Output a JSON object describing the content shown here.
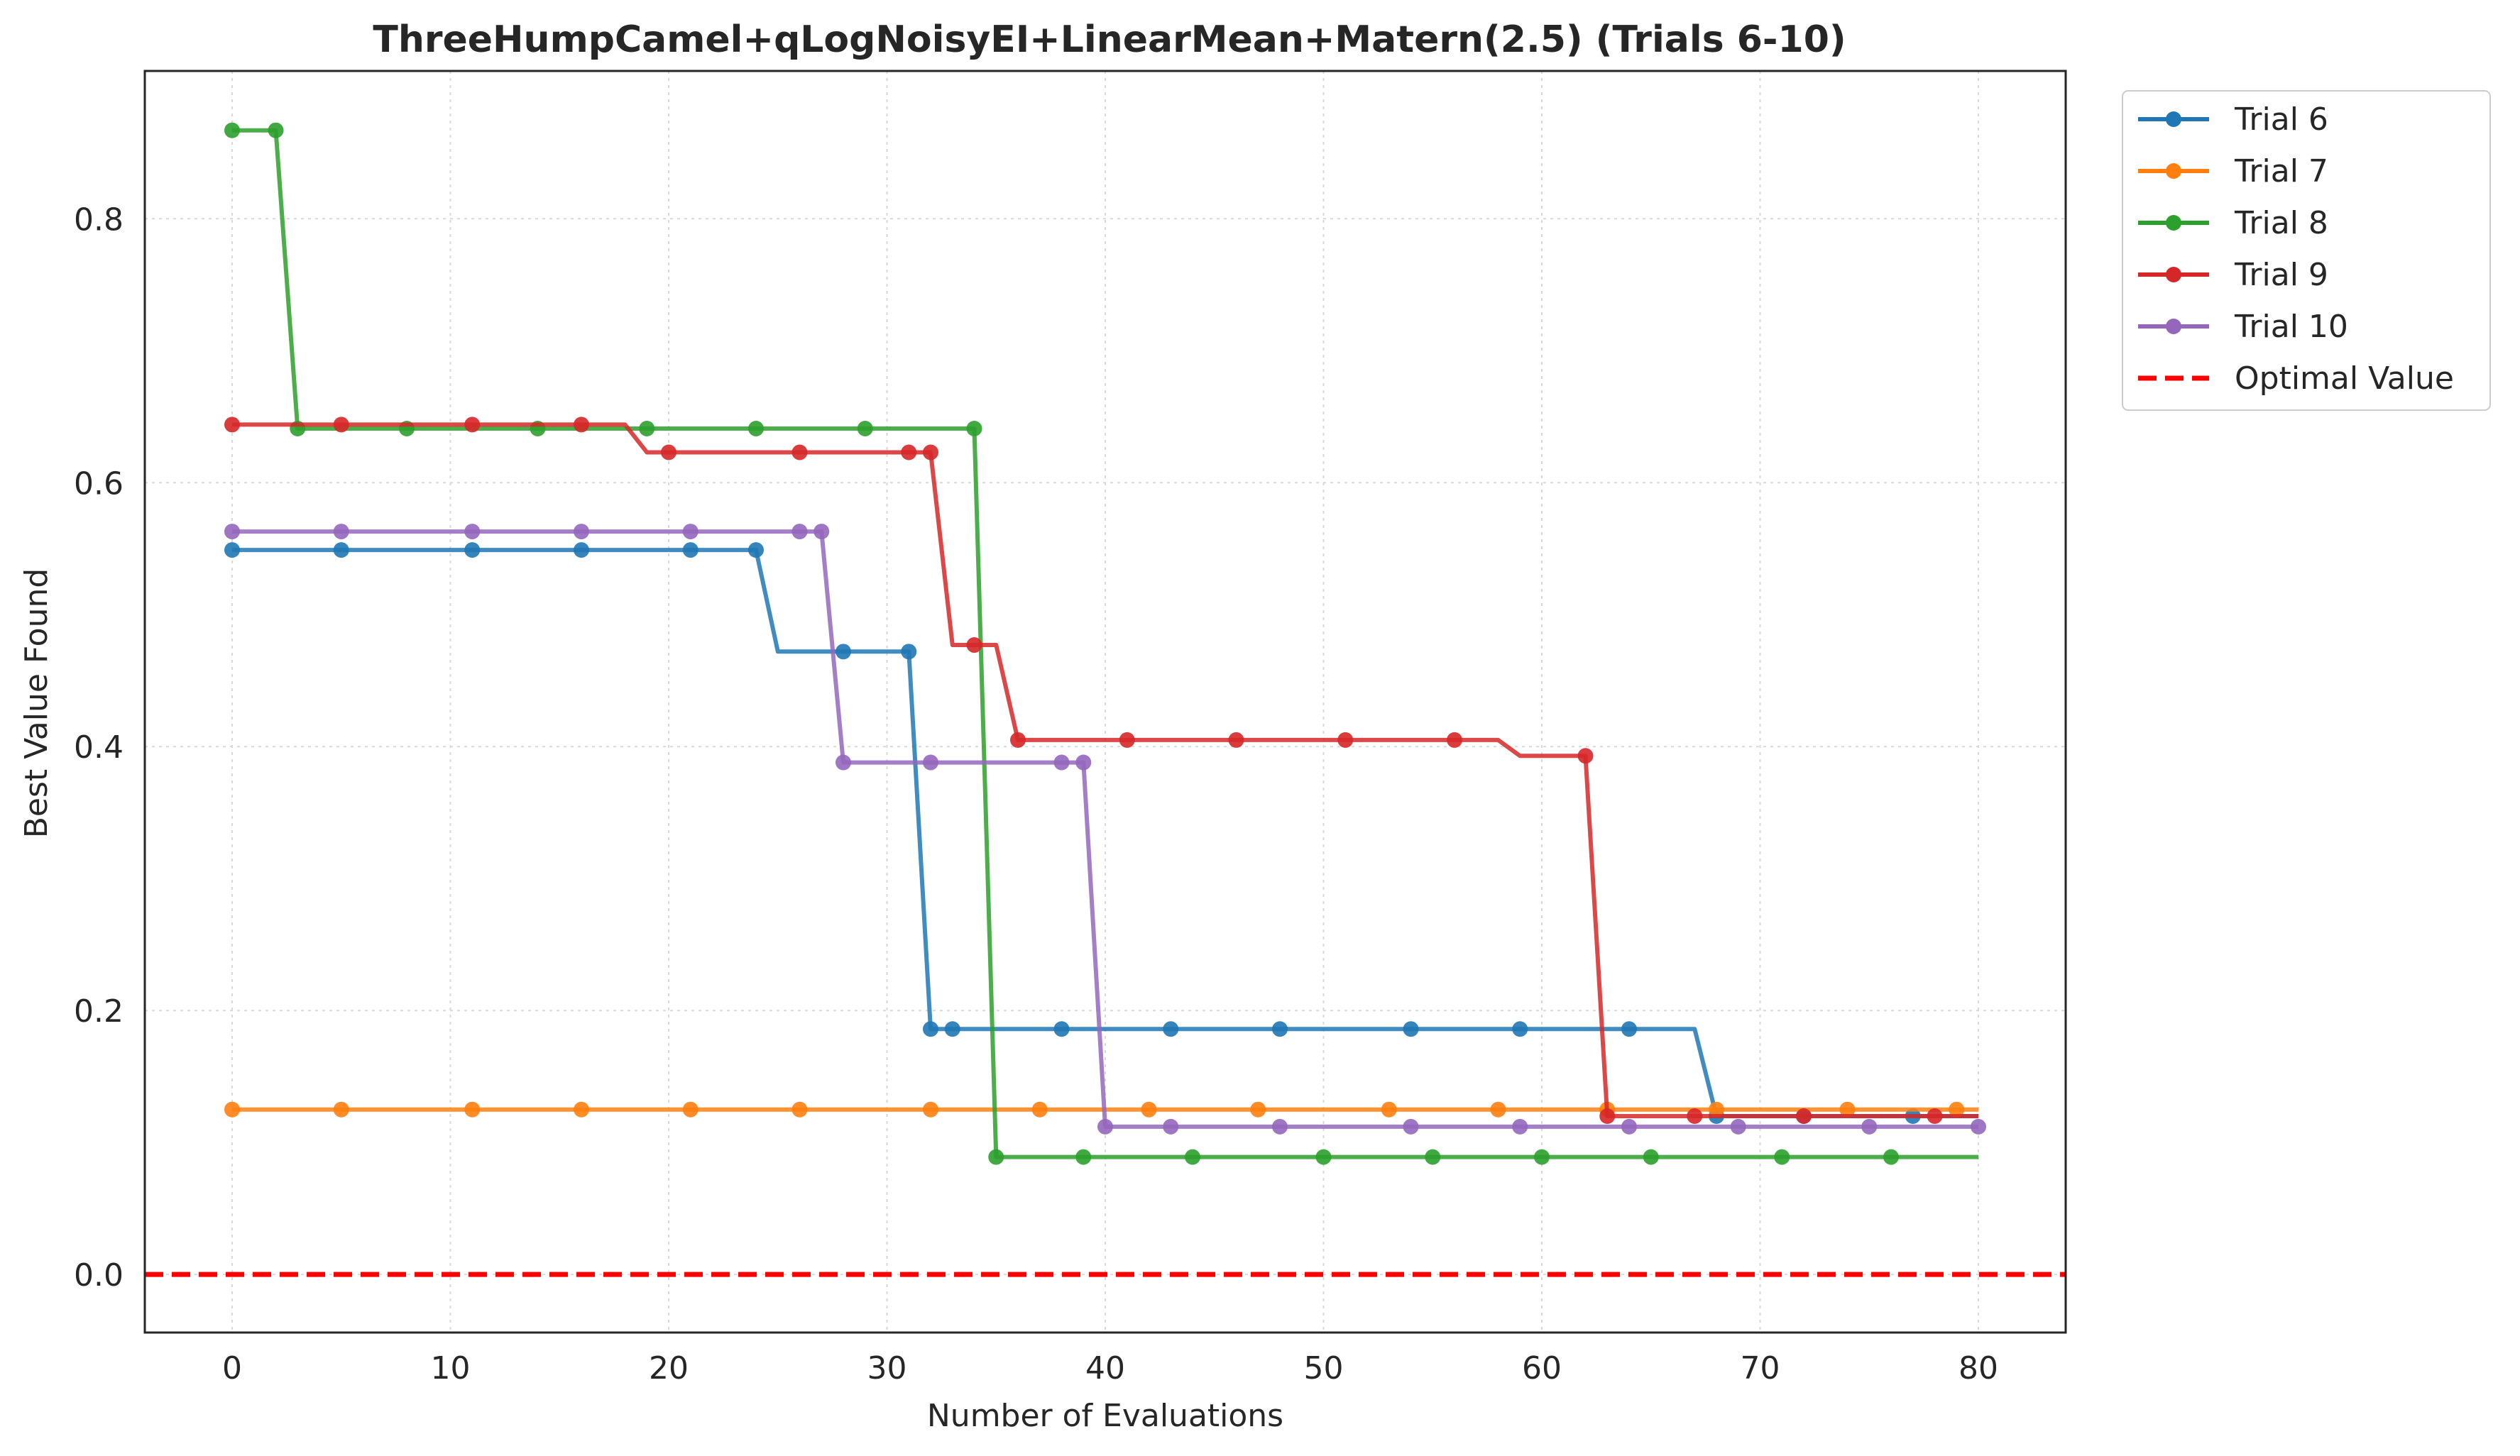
{
  "chart_data": {
    "type": "line",
    "title": "ThreeHumpCamel+qLogNoisyEI+LinearMean+Matern(2.5) (Trials 6-10)",
    "xlabel": "Number of Evaluations",
    "ylabel": "Best Value Found",
    "xlim": [
      -4,
      84
    ],
    "ylim": [
      -0.044,
      0.912
    ],
    "xticks": [
      0,
      10,
      20,
      30,
      40,
      50,
      60,
      70,
      80
    ],
    "yticks": [
      0.0,
      0.2,
      0.4,
      0.6,
      0.8
    ],
    "xtick_labels": [
      "0",
      "10",
      "20",
      "30",
      "40",
      "50",
      "60",
      "70",
      "80"
    ],
    "ytick_labels": [
      "0.0",
      "0.2",
      "0.4",
      "0.6",
      "0.8"
    ],
    "grid": true,
    "legend_position": "outside-top-right",
    "series": [
      {
        "name": "Trial 6",
        "color": "#1f77b4",
        "x": [
          0,
          1,
          2,
          3,
          4,
          5,
          6,
          7,
          8,
          9,
          10,
          11,
          12,
          13,
          14,
          15,
          16,
          17,
          18,
          19,
          20,
          21,
          22,
          23,
          24,
          25,
          26,
          27,
          28,
          29,
          30,
          31,
          32,
          33,
          34,
          35,
          36,
          37,
          38,
          39,
          40,
          41,
          42,
          43,
          44,
          45,
          46,
          47,
          48,
          49,
          50,
          51,
          52,
          53,
          54,
          55,
          56,
          57,
          58,
          59,
          60,
          61,
          62,
          63,
          64,
          65,
          66,
          67,
          68,
          69,
          70,
          71,
          72,
          73,
          74,
          75,
          76,
          77,
          78,
          79,
          80
        ],
        "y": [
          0.549,
          0.549,
          0.549,
          0.549,
          0.549,
          0.549,
          0.549,
          0.549,
          0.549,
          0.549,
          0.549,
          0.549,
          0.549,
          0.549,
          0.549,
          0.549,
          0.549,
          0.549,
          0.549,
          0.549,
          0.549,
          0.549,
          0.549,
          0.549,
          0.549,
          0.472,
          0.472,
          0.472,
          0.472,
          0.472,
          0.472,
          0.472,
          0.186,
          0.186,
          0.186,
          0.186,
          0.186,
          0.186,
          0.186,
          0.186,
          0.186,
          0.186,
          0.186,
          0.186,
          0.186,
          0.186,
          0.186,
          0.186,
          0.186,
          0.186,
          0.186,
          0.186,
          0.186,
          0.186,
          0.186,
          0.186,
          0.186,
          0.186,
          0.186,
          0.186,
          0.186,
          0.186,
          0.186,
          0.186,
          0.186,
          0.186,
          0.186,
          0.186,
          0.12,
          0.12,
          0.12,
          0.12,
          0.12,
          0.12,
          0.12,
          0.12,
          0.12,
          0.12,
          0.12,
          0.12,
          0.12
        ],
        "markers": [
          0,
          5,
          11,
          16,
          21,
          24,
          28,
          31,
          32,
          33,
          38,
          43,
          48,
          54,
          59,
          64,
          68,
          72,
          77
        ]
      },
      {
        "name": "Trial 7",
        "color": "#ff7f0e",
        "x": [
          0,
          80
        ],
        "y": [
          0.125,
          0.125
        ],
        "markers": [
          0,
          5,
          11,
          16,
          21,
          26,
          32,
          37,
          42,
          47,
          53,
          58,
          63,
          68,
          74,
          79
        ]
      },
      {
        "name": "Trial 8",
        "color": "#2ca02c",
        "x": [
          0,
          1,
          2,
          3,
          4,
          5,
          6,
          7,
          8,
          9,
          10,
          11,
          12,
          13,
          14,
          15,
          16,
          17,
          18,
          19,
          20,
          21,
          22,
          23,
          24,
          25,
          26,
          27,
          28,
          29,
          30,
          31,
          32,
          33,
          34,
          35,
          36,
          37,
          38,
          39,
          40,
          41,
          42,
          43,
          44,
          45,
          46,
          47,
          48,
          49,
          50,
          51,
          52,
          53,
          54,
          55,
          56,
          57,
          58,
          59,
          60,
          61,
          62,
          63,
          64,
          65,
          66,
          67,
          68,
          69,
          70,
          71,
          72,
          73,
          74,
          75,
          76,
          77,
          78,
          79,
          80
        ],
        "y": [
          0.867,
          0.867,
          0.867,
          0.641,
          0.641,
          0.641,
          0.641,
          0.641,
          0.641,
          0.641,
          0.641,
          0.641,
          0.641,
          0.641,
          0.641,
          0.641,
          0.641,
          0.641,
          0.641,
          0.641,
          0.641,
          0.641,
          0.641,
          0.641,
          0.641,
          0.641,
          0.641,
          0.641,
          0.641,
          0.641,
          0.641,
          0.641,
          0.641,
          0.641,
          0.641,
          0.089,
          0.089,
          0.089,
          0.089,
          0.089,
          0.089,
          0.089,
          0.089,
          0.089,
          0.089,
          0.089,
          0.089,
          0.089,
          0.089,
          0.089,
          0.089,
          0.089,
          0.089,
          0.089,
          0.089,
          0.089,
          0.089,
          0.089,
          0.089,
          0.089,
          0.089,
          0.089,
          0.089,
          0.089,
          0.089,
          0.089,
          0.089,
          0.089,
          0.089,
          0.089,
          0.089,
          0.089,
          0.089,
          0.089,
          0.089,
          0.089,
          0.089,
          0.089,
          0.089,
          0.089,
          0.089
        ],
        "markers": [
          0,
          2,
          3,
          8,
          14,
          19,
          24,
          29,
          34,
          35,
          39,
          44,
          50,
          55,
          60,
          65,
          71,
          76
        ]
      },
      {
        "name": "Trial 9",
        "color": "#d62728",
        "x": [
          0,
          1,
          2,
          3,
          4,
          5,
          6,
          7,
          8,
          9,
          10,
          11,
          12,
          13,
          14,
          15,
          16,
          17,
          18,
          19,
          20,
          21,
          22,
          23,
          24,
          25,
          26,
          27,
          28,
          29,
          30,
          31,
          32,
          33,
          34,
          35,
          36,
          37,
          38,
          39,
          40,
          41,
          42,
          43,
          44,
          45,
          46,
          47,
          48,
          49,
          50,
          51,
          52,
          53,
          54,
          55,
          56,
          57,
          58,
          59,
          60,
          61,
          62,
          63,
          64,
          65,
          66,
          67,
          68,
          69,
          70,
          71,
          72,
          73,
          74,
          75,
          76,
          77,
          78,
          79,
          80
        ],
        "y": [
          0.644,
          0.644,
          0.644,
          0.644,
          0.644,
          0.644,
          0.644,
          0.644,
          0.644,
          0.644,
          0.644,
          0.644,
          0.644,
          0.644,
          0.644,
          0.644,
          0.644,
          0.644,
          0.644,
          0.623,
          0.623,
          0.623,
          0.623,
          0.623,
          0.623,
          0.623,
          0.623,
          0.623,
          0.623,
          0.623,
          0.623,
          0.623,
          0.623,
          0.477,
          0.477,
          0.477,
          0.405,
          0.405,
          0.405,
          0.405,
          0.405,
          0.405,
          0.405,
          0.405,
          0.405,
          0.405,
          0.405,
          0.405,
          0.405,
          0.405,
          0.405,
          0.405,
          0.405,
          0.405,
          0.405,
          0.405,
          0.405,
          0.405,
          0.405,
          0.393,
          0.393,
          0.393,
          0.393,
          0.12,
          0.12,
          0.12,
          0.12,
          0.12,
          0.12,
          0.12,
          0.12,
          0.12,
          0.12,
          0.12,
          0.12,
          0.12,
          0.12,
          0.12,
          0.12,
          0.12,
          0.12
        ],
        "markers": [
          0,
          5,
          11,
          16,
          20,
          26,
          31,
          32,
          34,
          36,
          41,
          46,
          51,
          56,
          62,
          63,
          67,
          72,
          78
        ]
      },
      {
        "name": "Trial 10",
        "color": "#9467bd",
        "x": [
          0,
          1,
          2,
          3,
          4,
          5,
          6,
          7,
          8,
          9,
          10,
          11,
          12,
          13,
          14,
          15,
          16,
          17,
          18,
          19,
          20,
          21,
          22,
          23,
          24,
          25,
          26,
          27,
          28,
          29,
          30,
          31,
          32,
          33,
          34,
          35,
          36,
          37,
          38,
          39,
          40,
          41,
          42,
          43,
          44,
          45,
          46,
          47,
          48,
          49,
          50,
          51,
          52,
          53,
          54,
          55,
          56,
          57,
          58,
          59,
          60,
          61,
          62,
          63,
          64,
          65,
          66,
          67,
          68,
          69,
          70,
          71,
          72,
          73,
          74,
          75,
          76,
          77,
          78,
          79,
          80
        ],
        "y": [
          0.563,
          0.563,
          0.563,
          0.563,
          0.563,
          0.563,
          0.563,
          0.563,
          0.563,
          0.563,
          0.563,
          0.563,
          0.563,
          0.563,
          0.563,
          0.563,
          0.563,
          0.563,
          0.563,
          0.563,
          0.563,
          0.563,
          0.563,
          0.563,
          0.563,
          0.563,
          0.563,
          0.563,
          0.388,
          0.388,
          0.388,
          0.388,
          0.388,
          0.388,
          0.388,
          0.388,
          0.388,
          0.388,
          0.388,
          0.388,
          0.112,
          0.112,
          0.112,
          0.112,
          0.112,
          0.112,
          0.112,
          0.112,
          0.112,
          0.112,
          0.112,
          0.112,
          0.112,
          0.112,
          0.112,
          0.112,
          0.112,
          0.112,
          0.112,
          0.112,
          0.112,
          0.112,
          0.112,
          0.112,
          0.112,
          0.112,
          0.112,
          0.112,
          0.112,
          0.112,
          0.112,
          0.112,
          0.112,
          0.112,
          0.112,
          0.112,
          0.112,
          0.112,
          0.112,
          0.112,
          0.112
        ],
        "markers": [
          0,
          5,
          11,
          16,
          21,
          26,
          27,
          28,
          32,
          38,
          39,
          40,
          43,
          48,
          54,
          59,
          64,
          69,
          75,
          80
        ]
      }
    ],
    "reference_line": {
      "name": "Optimal Value",
      "y": 0.0,
      "color": "#ff0000",
      "style": "dashed"
    }
  }
}
